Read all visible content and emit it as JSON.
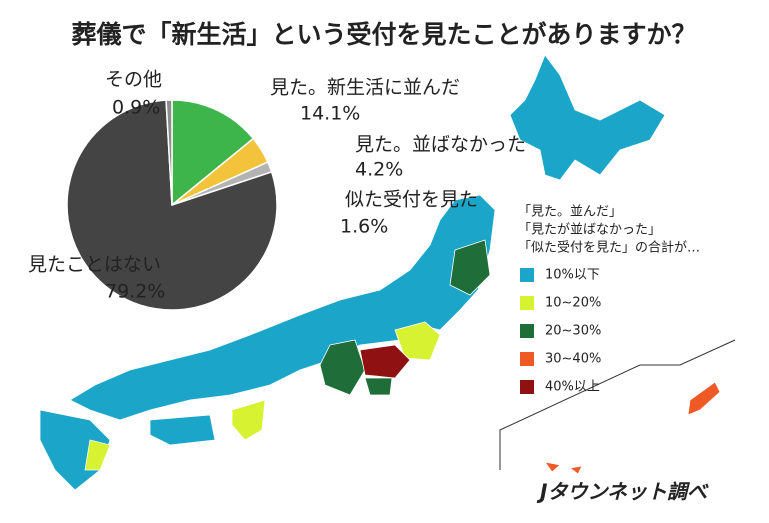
{
  "chart_data": {
    "type": "pie",
    "title": "葬儀で「新生活」という受付を見たことがありますか？",
    "categories": [
      "見た。新生活に並んだ",
      "見た。並ばなかった",
      "似た受付を見た",
      "見たことはない",
      "その他"
    ],
    "values": [
      14.1,
      4.2,
      1.6,
      79.2,
      0.9
    ],
    "value_labels": [
      "14.1%",
      "4.2%",
      "1.6%",
      "79.2%",
      "0.9%"
    ],
    "colors": [
      "#3db54b",
      "#f2c33b",
      "#b3b3b3",
      "#444444",
      "#8c8c8c"
    ]
  },
  "map": {
    "legend_title": [
      "「見た。並んだ」",
      "「見たが並ばなかった」",
      "「似た受付を見た」の合計が…"
    ],
    "legend": [
      {
        "label": "10%以下",
        "color": "#1ba6c9"
      },
      {
        "label": "10~20%",
        "color": "#d6f230"
      },
      {
        "label": "20~30%",
        "color": "#1f6e3a"
      },
      {
        "label": "30~40%",
        "color": "#ef5a24"
      },
      {
        "label": "40%以上",
        "color": "#8f1111"
      }
    ]
  },
  "source": "Jタウンネット調べ"
}
